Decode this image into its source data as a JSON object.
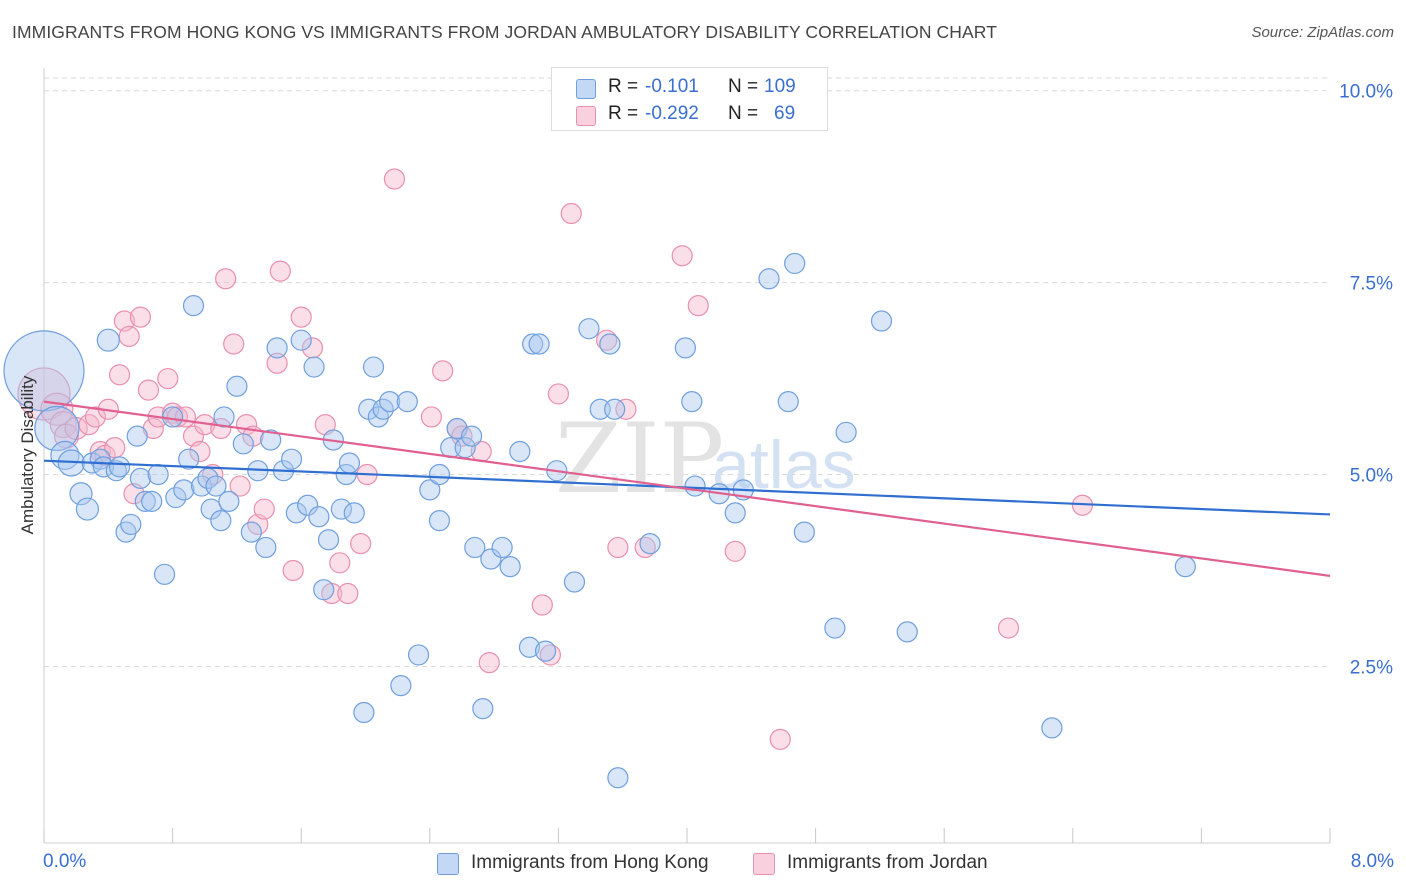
{
  "header": {
    "title": "IMMIGRANTS FROM HONG KONG VS IMMIGRANTS FROM JORDAN AMBULATORY DISABILITY CORRELATION CHART",
    "source": "Source: ZipAtlas.com"
  },
  "legend_top": {
    "rows": [
      {
        "r_label": "R =",
        "r_value": "-0.101",
        "n_label": "N =",
        "n_value": "109"
      },
      {
        "r_label": "R =",
        "r_value": "-0.292",
        "n_label": "N =",
        "n_value": "69"
      }
    ]
  },
  "bottom_legend": [
    {
      "label": "Immigrants from Hong Kong"
    },
    {
      "label": "Immigrants from Jordan"
    }
  ],
  "axes": {
    "x_min_label": "0.0%",
    "x_max_label": "8.0%",
    "y_label": "Ambulatory Disability",
    "y_ticks": [
      "2.5%",
      "5.0%",
      "7.5%",
      "10.0%"
    ]
  },
  "watermark": {
    "zip": "ZIP",
    "atlas": "atlas"
  },
  "colors": {
    "blue_fill": "#a9c8f0",
    "blue_stroke": "#6f9fde",
    "blue_line": "#2f6fd2",
    "pink_fill": "#f5b8cc",
    "pink_stroke": "#e98fad",
    "pink_line": "#e0608f",
    "tick_label": "#3a6fd0"
  },
  "chart_data": {
    "type": "scatter",
    "xlabel": "",
    "ylabel": "Ambulatory Disability",
    "xlim": [
      0,
      8
    ],
    "ylim": [
      0.2,
      10.4
    ],
    "x_unit": "%",
    "y_unit": "%",
    "y_tick_values": [
      2.5,
      5.0,
      7.5,
      10.0
    ],
    "grid": "horizontal dashed",
    "series": [
      {
        "name": "Immigrants from Hong Kong",
        "color": "blue",
        "trend": {
          "x": [
            0,
            8
          ],
          "y": [
            5.18,
            4.48
          ]
        },
        "points": [
          [
            0.0,
            6.35,
            40
          ],
          [
            0.08,
            5.6,
            22
          ],
          [
            0.13,
            5.25,
            14
          ],
          [
            0.17,
            5.15,
            13
          ],
          [
            0.23,
            4.75,
            11
          ],
          [
            0.27,
            4.55,
            11
          ],
          [
            0.3,
            5.15,
            10
          ],
          [
            0.35,
            5.2,
            10
          ],
          [
            0.37,
            5.1,
            10
          ],
          [
            0.4,
            6.75,
            11
          ],
          [
            0.45,
            5.05,
            10
          ],
          [
            0.47,
            5.1,
            10
          ],
          [
            0.51,
            4.25,
            10
          ],
          [
            0.54,
            4.35,
            10
          ],
          [
            0.58,
            5.5,
            10
          ],
          [
            0.6,
            4.95,
            10
          ],
          [
            0.63,
            4.65,
            10
          ],
          [
            0.67,
            4.65,
            10
          ],
          [
            0.71,
            5.0,
            10
          ],
          [
            0.75,
            3.7,
            10
          ],
          [
            0.8,
            5.75,
            10
          ],
          [
            0.82,
            4.7,
            10
          ],
          [
            0.87,
            4.8,
            10
          ],
          [
            0.9,
            5.2,
            10
          ],
          [
            0.93,
            7.2,
            10
          ],
          [
            0.98,
            4.85,
            10
          ],
          [
            1.02,
            4.95,
            10
          ],
          [
            1.04,
            4.55,
            10
          ],
          [
            1.07,
            4.85,
            10
          ],
          [
            1.1,
            4.4,
            10
          ],
          [
            1.12,
            5.75,
            10
          ],
          [
            1.15,
            4.65,
            10
          ],
          [
            1.2,
            6.15,
            10
          ],
          [
            1.24,
            5.4,
            10
          ],
          [
            1.29,
            4.25,
            10
          ],
          [
            1.33,
            5.05,
            10
          ],
          [
            1.38,
            4.05,
            10
          ],
          [
            1.41,
            5.45,
            10
          ],
          [
            1.45,
            6.65,
            10
          ],
          [
            1.49,
            5.05,
            10
          ],
          [
            1.54,
            5.2,
            10
          ],
          [
            1.57,
            4.5,
            10
          ],
          [
            1.6,
            6.75,
            10
          ],
          [
            1.64,
            4.6,
            10
          ],
          [
            1.68,
            6.4,
            10
          ],
          [
            1.71,
            4.45,
            10
          ],
          [
            1.74,
            3.5,
            10
          ],
          [
            1.77,
            4.15,
            10
          ],
          [
            1.8,
            5.45,
            10
          ],
          [
            1.85,
            4.55,
            10
          ],
          [
            1.88,
            5.0,
            10
          ],
          [
            1.9,
            5.15,
            10
          ],
          [
            1.93,
            4.5,
            10
          ],
          [
            1.99,
            1.9,
            10
          ],
          [
            2.02,
            5.85,
            10
          ],
          [
            2.05,
            6.4,
            10
          ],
          [
            2.08,
            5.75,
            10
          ],
          [
            2.11,
            5.85,
            10
          ],
          [
            2.15,
            5.95,
            10
          ],
          [
            2.22,
            2.25,
            10
          ],
          [
            2.26,
            5.95,
            10
          ],
          [
            2.33,
            2.65,
            10
          ],
          [
            2.4,
            4.8,
            10
          ],
          [
            2.46,
            4.4,
            10
          ],
          [
            2.46,
            5.0,
            10
          ],
          [
            2.53,
            5.35,
            10
          ],
          [
            2.57,
            5.6,
            10
          ],
          [
            2.62,
            5.35,
            10
          ],
          [
            2.66,
            5.5,
            10
          ],
          [
            2.68,
            4.05,
            10
          ],
          [
            2.73,
            1.95,
            10
          ],
          [
            2.78,
            3.9,
            10
          ],
          [
            2.85,
            4.05,
            10
          ],
          [
            2.9,
            3.8,
            10
          ],
          [
            2.96,
            5.3,
            10
          ],
          [
            3.02,
            2.75,
            10
          ],
          [
            3.04,
            6.7,
            10
          ],
          [
            3.08,
            6.7,
            10
          ],
          [
            3.12,
            2.7,
            10
          ],
          [
            3.19,
            5.05,
            10
          ],
          [
            3.3,
            3.6,
            10
          ],
          [
            3.39,
            6.9,
            10
          ],
          [
            3.46,
            5.85,
            10
          ],
          [
            3.52,
            6.7,
            10
          ],
          [
            3.55,
            5.85,
            10
          ],
          [
            3.57,
            1.05,
            10
          ],
          [
            3.77,
            4.1,
            10
          ],
          [
            3.99,
            6.65,
            10
          ],
          [
            4.03,
            5.95,
            10
          ],
          [
            4.05,
            4.85,
            10
          ],
          [
            4.2,
            4.75,
            10
          ],
          [
            4.3,
            4.5,
            10
          ],
          [
            4.35,
            4.8,
            10
          ],
          [
            4.51,
            7.55,
            10
          ],
          [
            4.63,
            5.95,
            10
          ],
          [
            4.67,
            7.75,
            10
          ],
          [
            4.73,
            4.25,
            10
          ],
          [
            4.92,
            3.0,
            10
          ],
          [
            4.99,
            5.55,
            10
          ],
          [
            5.21,
            7.0,
            10
          ],
          [
            5.37,
            2.95,
            10
          ],
          [
            6.27,
            1.7,
            10
          ],
          [
            7.1,
            3.8,
            10
          ]
        ]
      },
      {
        "name": "Immigrants from Jordan",
        "color": "pink",
        "trend": {
          "x": [
            0,
            8
          ],
          "y": [
            5.95,
            3.68
          ]
        },
        "points": [
          [
            0.0,
            6.05,
            26
          ],
          [
            0.08,
            5.85,
            16
          ],
          [
            0.12,
            5.65,
            13
          ],
          [
            0.14,
            5.5,
            12
          ],
          [
            0.2,
            5.6,
            11
          ],
          [
            0.28,
            5.65,
            10
          ],
          [
            0.32,
            5.75,
            10
          ],
          [
            0.35,
            5.3,
            10
          ],
          [
            0.38,
            5.25,
            10
          ],
          [
            0.4,
            5.85,
            10
          ],
          [
            0.44,
            5.35,
            10
          ],
          [
            0.47,
            6.3,
            10
          ],
          [
            0.5,
            7.0,
            10
          ],
          [
            0.53,
            6.8,
            10
          ],
          [
            0.56,
            4.75,
            10
          ],
          [
            0.6,
            7.05,
            10
          ],
          [
            0.65,
            6.1,
            10
          ],
          [
            0.68,
            5.6,
            10
          ],
          [
            0.71,
            5.75,
            10
          ],
          [
            0.77,
            6.25,
            10
          ],
          [
            0.8,
            5.8,
            10
          ],
          [
            0.83,
            5.75,
            10
          ],
          [
            0.88,
            5.75,
            10
          ],
          [
            0.93,
            5.5,
            10
          ],
          [
            0.97,
            5.3,
            10
          ],
          [
            1.0,
            5.65,
            10
          ],
          [
            1.05,
            5.0,
            10
          ],
          [
            1.1,
            5.6,
            10
          ],
          [
            1.13,
            7.55,
            10
          ],
          [
            1.18,
            6.7,
            10
          ],
          [
            1.22,
            4.85,
            10
          ],
          [
            1.26,
            5.65,
            10
          ],
          [
            1.3,
            5.5,
            10
          ],
          [
            1.33,
            4.35,
            10
          ],
          [
            1.37,
            4.55,
            10
          ],
          [
            1.45,
            6.45,
            10
          ],
          [
            1.47,
            7.65,
            10
          ],
          [
            1.55,
            3.75,
            10
          ],
          [
            1.6,
            7.05,
            10
          ],
          [
            1.67,
            6.65,
            10
          ],
          [
            1.75,
            5.65,
            10
          ],
          [
            1.79,
            3.45,
            10
          ],
          [
            1.84,
            3.85,
            10
          ],
          [
            1.89,
            3.45,
            10
          ],
          [
            1.97,
            4.1,
            10
          ],
          [
            2.01,
            5.0,
            10
          ],
          [
            2.18,
            8.85,
            10
          ],
          [
            2.41,
            5.75,
            10
          ],
          [
            2.48,
            6.35,
            10
          ],
          [
            2.57,
            5.6,
            10
          ],
          [
            2.6,
            5.5,
            10
          ],
          [
            2.72,
            5.3,
            10
          ],
          [
            2.77,
            2.55,
            10
          ],
          [
            3.1,
            3.3,
            10
          ],
          [
            3.15,
            2.65,
            10
          ],
          [
            3.2,
            6.05,
            10
          ],
          [
            3.28,
            8.4,
            10
          ],
          [
            3.5,
            6.75,
            10
          ],
          [
            3.57,
            4.05,
            10
          ],
          [
            3.62,
            5.85,
            10
          ],
          [
            3.74,
            4.05,
            10
          ],
          [
            3.97,
            7.85,
            10
          ],
          [
            4.07,
            7.2,
            10
          ],
          [
            4.3,
            4.0,
            10
          ],
          [
            4.58,
            1.55,
            10
          ],
          [
            6.0,
            3.0,
            10
          ],
          [
            6.46,
            4.6,
            10
          ]
        ]
      }
    ]
  }
}
